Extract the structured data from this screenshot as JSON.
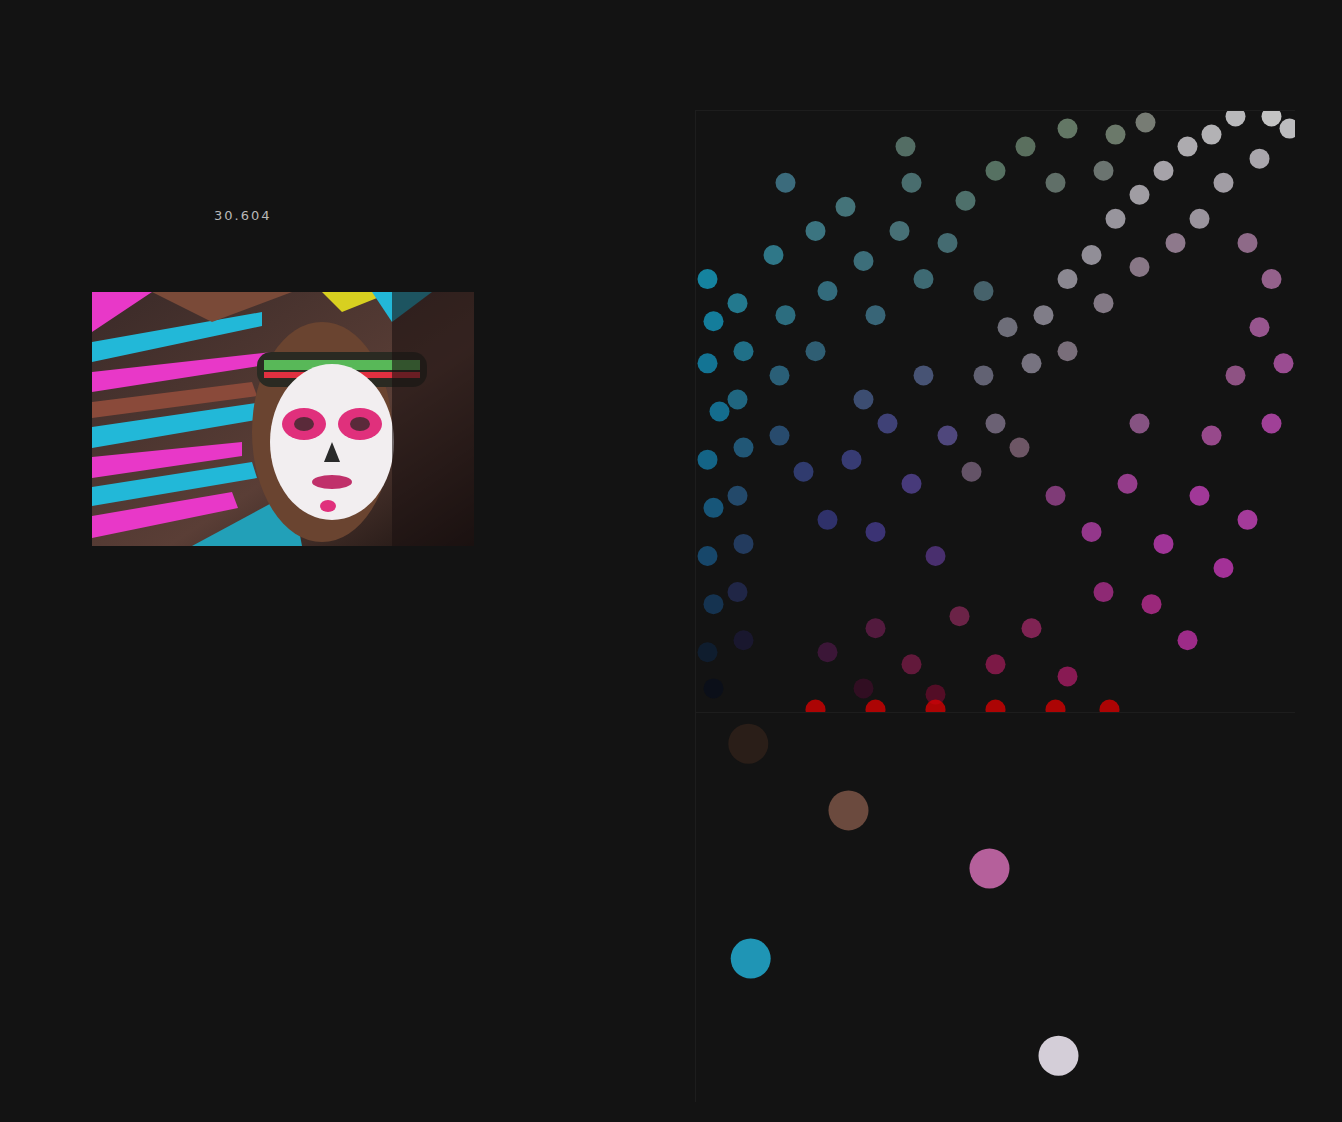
{
  "chart_data": [
    {
      "type": "scatter",
      "annotation": "30.604",
      "tick_labels": false,
      "xlim": [
        0,
        100
      ],
      "ylim": [
        0,
        100
      ],
      "x": [
        2,
        3,
        2,
        4,
        2,
        3,
        2,
        3,
        2,
        3,
        7,
        8,
        7,
        8,
        7,
        8,
        7,
        8,
        13,
        15,
        14,
        14,
        20,
        22,
        20,
        25,
        28,
        30,
        34,
        38,
        36,
        45,
        42,
        50,
        48,
        15,
        35,
        55,
        62,
        70,
        60,
        68,
        75,
        18,
        22,
        26,
        30,
        32,
        36,
        40,
        42,
        28,
        38,
        46,
        50,
        48,
        54,
        56,
        52,
        58,
        62,
        66,
        70,
        74,
        78,
        82,
        86,
        90,
        96,
        99,
        94,
        88,
        84,
        62,
        68,
        74,
        80,
        92,
        96,
        94,
        98,
        90,
        96,
        60,
        66,
        72,
        78,
        84,
        88,
        76,
        82,
        68,
        92,
        86,
        74,
        22,
        30,
        36,
        44,
        50,
        56,
        62,
        28,
        40,
        20,
        30,
        40,
        50,
        60,
        69
      ],
      "y": [
        72,
        65,
        58,
        50,
        42,
        34,
        26,
        18,
        10,
        4,
        68,
        60,
        52,
        44,
        36,
        28,
        20,
        12,
        76,
        66,
        56,
        46,
        80,
        70,
        60,
        84,
        75,
        66,
        80,
        72,
        88,
        85,
        78,
        90,
        70,
        88,
        94,
        94,
        97,
        96,
        88,
        90,
        98,
        40,
        32,
        42,
        30,
        48,
        38,
        26,
        46,
        52,
        56,
        40,
        48,
        56,
        44,
        58,
        64,
        66,
        72,
        76,
        82,
        86,
        90,
        94,
        96,
        99,
        99,
        97,
        92,
        88,
        82,
        60,
        68,
        74,
        78,
        78,
        72,
        64,
        58,
        56,
        48,
        36,
        30,
        38,
        28,
        36,
        24,
        18,
        12,
        20,
        32,
        46,
        48,
        10,
        14,
        8,
        16,
        8,
        14,
        6,
        4,
        3,
        0.5,
        0.5,
        0.5,
        0.5,
        0.5,
        0.5
      ],
      "colors": [
        "#17a9cf",
        "#15a2c9",
        "#1496c0",
        "#168cb8",
        "#1580ad",
        "#1a6e9c",
        "#1a5a88",
        "#173f66",
        "#0f2238",
        "#0a0f1c",
        "#2a9cb8",
        "#2590b0",
        "#2683a6",
        "#276f98",
        "#2a5c88",
        "#2a4a78",
        "#252e58",
        "#1c1a38",
        "#3a9ab0",
        "#368ca4",
        "#33799a",
        "#305f8c",
        "#4a96a6",
        "#3f8aa0",
        "#3a7894",
        "#55949c",
        "#4b8e9e",
        "#46829a",
        "#5a9098",
        "#4d8894",
        "#5c8c8e",
        "#63908a",
        "#568a92",
        "#6d927e",
        "#587e8a",
        "#4a8aa0",
        "#6a8c80",
        "#738f78",
        "#7f9a82",
        "#8a9c88",
        "#7b8f86",
        "#8a9690",
        "#9aa096",
        "#3b4a8e",
        "#3a3c88",
        "#444a94",
        "#4a3f96",
        "#4f5298",
        "#5a489e",
        "#5c3a8e",
        "#645aa0",
        "#4b6292",
        "#5a6a96",
        "#806a84",
        "#8a7c96",
        "#7e7e94",
        "#8c6e82",
        "#9a94a6",
        "#8e8e9c",
        "#a6a2b0",
        "#b4b0bc",
        "#bcb8c4",
        "#c6c2cc",
        "#d0ccd4",
        "#d8d4dc",
        "#e2dfe4",
        "#eae8ec",
        "#f2f2f4",
        "#ffffff",
        "#f6f6f8",
        "#dcd8e0",
        "#d2ccd6",
        "#c8c0cc",
        "#9c8e9e",
        "#aa9cac",
        "#b09aae",
        "#b89cb6",
        "#b888b0",
        "#c07cb4",
        "#c46cb8",
        "#c860bc",
        "#b868aa",
        "#d050c4",
        "#a44a9a",
        "#c044b4",
        "#c24cb4",
        "#d040c4",
        "#d246c6",
        "#d43cc4",
        "#c8309e",
        "#cc34b0",
        "#b83296",
        "#d648c8",
        "#c45cb4",
        "#ae6aa8",
        "#4a1844",
        "#6a1e4e",
        "#7e1c4a",
        "#8a2a5a",
        "#a01c58",
        "#a42a6a",
        "#b01e6a",
        "#3c0e28",
        "#6a0c2e",
        "#e00000",
        "#e00000",
        "#e00000",
        "#e00000",
        "#e00000",
        "#e00000"
      ]
    },
    {
      "type": "scatter",
      "tick_labels": false,
      "xlim": [
        0,
        100
      ],
      "ylim": [
        0,
        100
      ],
      "x": [
        8.8,
        25.5,
        49,
        9.2,
        60.5
      ],
      "y": [
        92,
        74.9,
        60,
        36.9,
        12
      ],
      "colors": [
        "#2a1e18",
        "#6b4a3e",
        "#b5609b",
        "#1f95b5",
        "#d4ced8"
      ]
    }
  ]
}
